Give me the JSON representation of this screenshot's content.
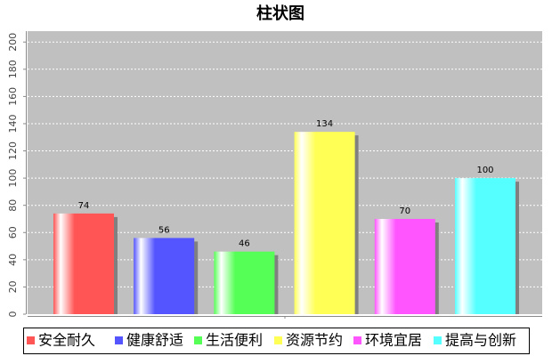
{
  "chart_data": {
    "type": "bar",
    "title": "柱状图",
    "series": [
      {
        "name": "安全耐久",
        "color": "#ff5555",
        "values": [
          74
        ]
      },
      {
        "name": "健康舒适",
        "color": "#5555ff",
        "values": [
          56
        ]
      },
      {
        "name": "生活便利",
        "color": "#55ff55",
        "values": [
          46
        ]
      },
      {
        "name": "资源节约",
        "color": "#ffff55",
        "values": [
          134
        ]
      },
      {
        "name": "环境宜居",
        "color": "#ff55ff",
        "values": [
          70
        ]
      },
      {
        "name": "提高与创新",
        "color": "#55ffff",
        "values": [
          100
        ]
      }
    ],
    "ylim": [
      0,
      208
    ],
    "yticks": [
      0,
      20,
      40,
      60,
      80,
      100,
      120,
      140,
      160,
      180,
      200
    ],
    "grid": true
  }
}
